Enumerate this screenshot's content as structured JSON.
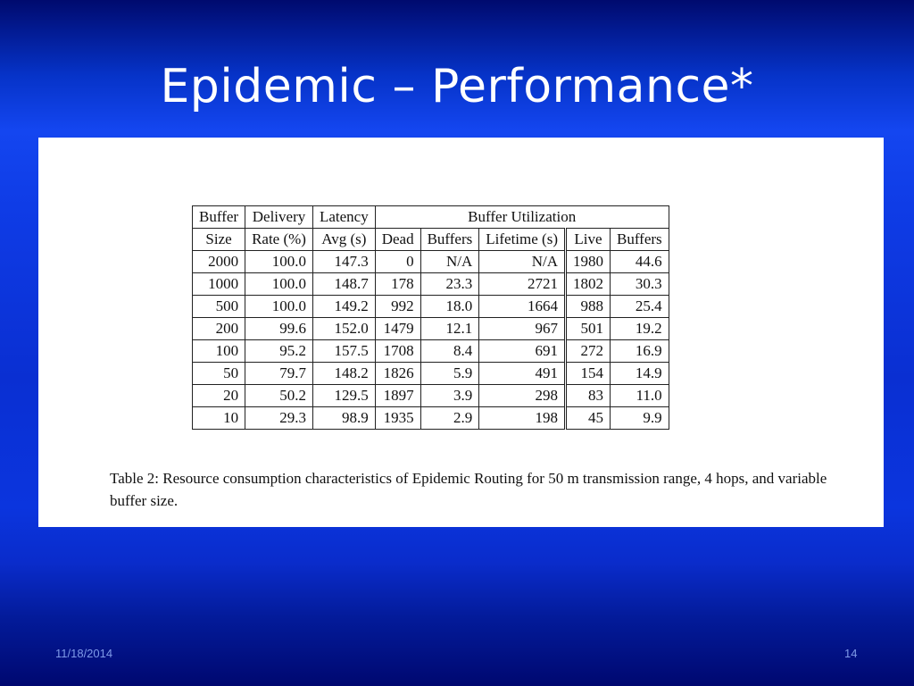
{
  "slide": {
    "title": "Epidemic – Performance*",
    "date": "11/18/2014",
    "page_number": "14",
    "colors": {
      "background": "#0f3ce6",
      "title": "#ffffff",
      "footer": "#7f9ae8"
    }
  },
  "table": {
    "header_row1": [
      "Buffer",
      "Delivery",
      "Latency",
      "Buffer Utilization"
    ],
    "header_row2": [
      "Size",
      "Rate (%)",
      "Avg (s)",
      "Dead",
      "Buffers",
      "Lifetime (s)",
      "Live",
      "Buffers"
    ],
    "rows": [
      [
        "2000",
        "100.0",
        "147.3",
        "0",
        "N/A",
        "N/A",
        "1980",
        "44.6"
      ],
      [
        "1000",
        "100.0",
        "148.7",
        "178",
        "23.3",
        "2721",
        "1802",
        "30.3"
      ],
      [
        "500",
        "100.0",
        "149.2",
        "992",
        "18.0",
        "1664",
        "988",
        "25.4"
      ],
      [
        "200",
        "99.6",
        "152.0",
        "1479",
        "12.1",
        "967",
        "501",
        "19.2"
      ],
      [
        "100",
        "95.2",
        "157.5",
        "1708",
        "8.4",
        "691",
        "272",
        "16.9"
      ],
      [
        "50",
        "79.7",
        "148.2",
        "1826",
        "5.9",
        "491",
        "154",
        "14.9"
      ],
      [
        "20",
        "50.2",
        "129.5",
        "1897",
        "3.9",
        "298",
        "83",
        "11.0"
      ],
      [
        "10",
        "29.3",
        "98.9",
        "1935",
        "2.9",
        "198",
        "45",
        "9.9"
      ]
    ]
  },
  "caption": "Table 2: Resource consumption characteristics of Epidemic Routing for 50 m transmission range, 4 hops, and variable buffer size."
}
